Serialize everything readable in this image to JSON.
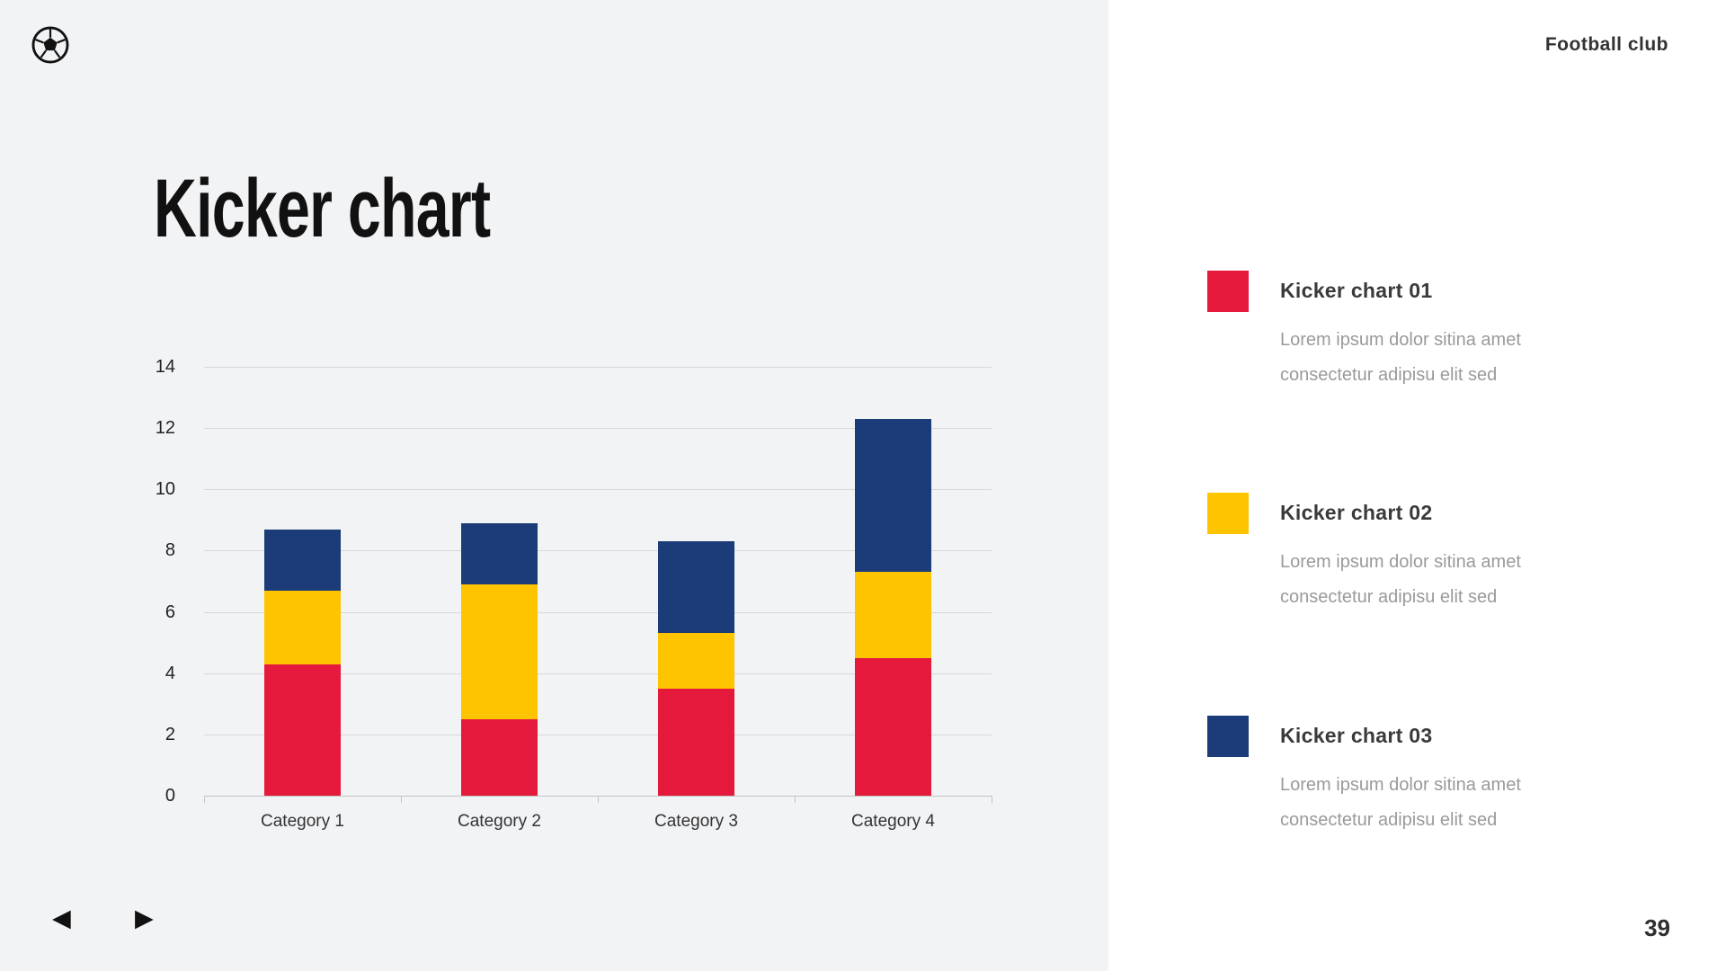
{
  "header": {
    "brand": "Football club"
  },
  "slide": {
    "title": "Kicker chart",
    "page_number": "39"
  },
  "chart_data": {
    "type": "bar",
    "stacked": true,
    "title": "Kicker chart",
    "categories": [
      "Category 1",
      "Category 2",
      "Category 3",
      "Category 4"
    ],
    "series": [
      {
        "name": "Kicker chart 01",
        "color": "#E4193C",
        "values": [
          4.3,
          2.5,
          3.5,
          4.5
        ]
      },
      {
        "name": "Kicker chart 02",
        "color": "#FFC400",
        "values": [
          2.4,
          4.4,
          1.8,
          2.8
        ]
      },
      {
        "name": "Kicker chart 03",
        "color": "#1B3C78",
        "values": [
          2.0,
          2.0,
          3.0,
          5.0
        ]
      }
    ],
    "stack_totals": [
      8.7,
      8.9,
      8.3,
      12.3
    ],
    "xlabel": "",
    "ylabel": "",
    "ylim": [
      0,
      14
    ],
    "yticks": [
      0,
      2,
      4,
      6,
      8,
      10,
      12,
      14
    ],
    "grid": true,
    "legend_position": "right-panel"
  },
  "legend": {
    "items": [
      {
        "label": "Kicker chart 01",
        "color": "#E4193C",
        "description": "Lorem ipsum dolor sitina amet consectetur adipisu elit sed"
      },
      {
        "label": "Kicker chart 02",
        "color": "#FFC400",
        "description": "Lorem ipsum dolor sitina amet consectetur adipisu elit sed"
      },
      {
        "label": "Kicker chart 03",
        "color": "#1B3C78",
        "description": "Lorem ipsum dolor sitina amet consectetur adipisu elit sed"
      }
    ]
  },
  "icons": {
    "logo": "soccer-ball",
    "prev_glyph": "◀",
    "next_glyph": "▶"
  }
}
